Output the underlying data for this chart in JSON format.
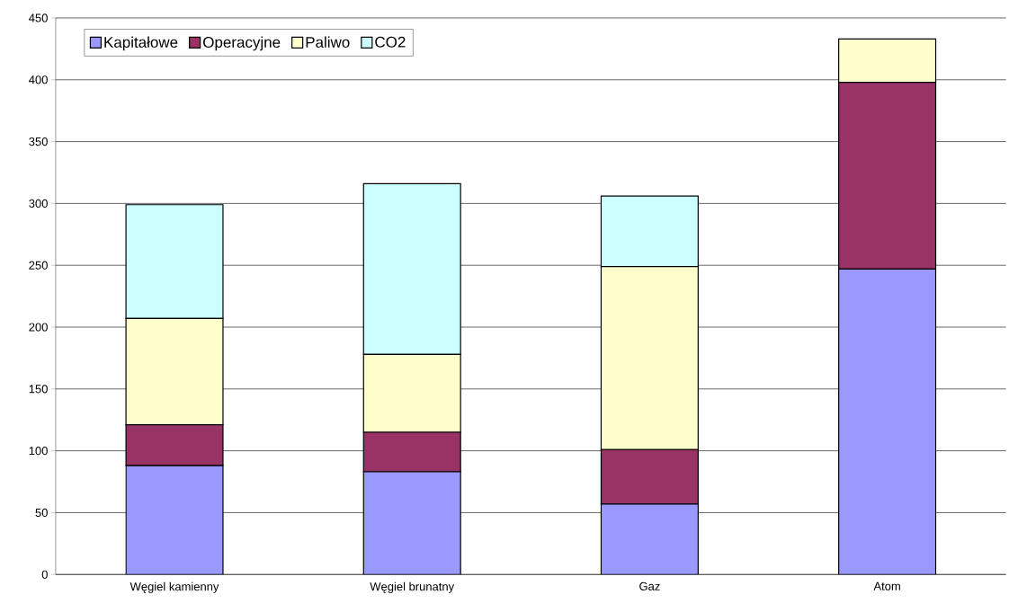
{
  "chart_data": {
    "type": "bar",
    "stacked": true,
    "categories": [
      "Węgiel kamienny",
      "Węgiel brunatny",
      "Gaz",
      "Atom"
    ],
    "series": [
      {
        "name": "Kapitałowe",
        "color": "#9999ff",
        "values": [
          88,
          83,
          57,
          247
        ]
      },
      {
        "name": "Operacyjne",
        "color": "#993366",
        "values": [
          33,
          32,
          44,
          151
        ]
      },
      {
        "name": "Paliwo",
        "color": "#ffffcc",
        "values": [
          86,
          63,
          148,
          35
        ]
      },
      {
        "name": "CO2",
        "color": "#ccffff",
        "values": [
          92,
          138,
          57,
          0
        ]
      }
    ],
    "ylim": [
      0,
      450
    ],
    "yticks": [
      0,
      50,
      100,
      150,
      200,
      250,
      300,
      350,
      400,
      450
    ],
    "grid": "y",
    "legend": "top left"
  }
}
